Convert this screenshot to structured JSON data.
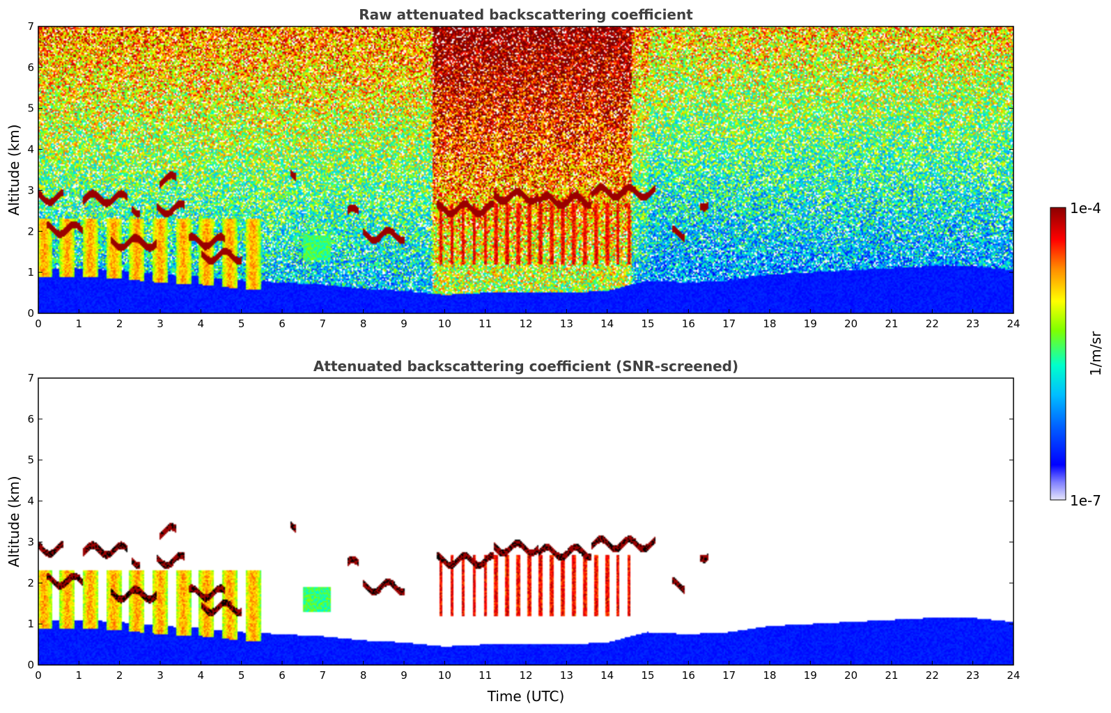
{
  "chart_data": [
    {
      "type": "heatmap",
      "title": "Raw attenuated backscattering coefficient",
      "xlabel": "",
      "ylabel": "Altitude (km)",
      "xlim": [
        0,
        24
      ],
      "ylim": [
        0,
        7
      ],
      "xticks": [
        "0",
        "1",
        "2",
        "3",
        "4",
        "5",
        "6",
        "7",
        "8",
        "9",
        "10",
        "11",
        "12",
        "13",
        "14",
        "15",
        "16",
        "17",
        "18",
        "19",
        "20",
        "21",
        "22",
        "23",
        "24"
      ],
      "yticks": [
        "0",
        "1",
        "2",
        "3",
        "4",
        "5",
        "6",
        "7"
      ],
      "screened": false
    },
    {
      "type": "heatmap",
      "title": "Attenuated backscattering coefficient (SNR-screened)",
      "xlabel": "Time (UTC)",
      "ylabel": "Altitude (km)",
      "xlim": [
        0,
        24
      ],
      "ylim": [
        0,
        7
      ],
      "xticks": [
        "0",
        "1",
        "2",
        "3",
        "4",
        "5",
        "6",
        "7",
        "8",
        "9",
        "10",
        "11",
        "12",
        "13",
        "14",
        "15",
        "16",
        "17",
        "18",
        "19",
        "20",
        "21",
        "22",
        "23",
        "24"
      ],
      "yticks": [
        "0",
        "1",
        "2",
        "3",
        "4",
        "5",
        "6",
        "7"
      ],
      "screened": true
    }
  ],
  "colorbar": {
    "label": "1/m/sr",
    "max_label": "1e-4",
    "min_label": "1e-7",
    "scale": "log",
    "colormap": "jet",
    "colors": [
      "#e6e6fa",
      "#0000ff",
      "#00bfff",
      "#00ffcc",
      "#7fff00",
      "#ffff00",
      "#ff8c00",
      "#ff0000",
      "#8b0000"
    ]
  },
  "features": {
    "cloud_layers": [
      {
        "t0": 0.0,
        "t1": 0.6,
        "alt": 2.83
      },
      {
        "t0": 0.2,
        "t1": 1.1,
        "alt": 2.05
      },
      {
        "t0": 1.1,
        "t1": 2.2,
        "alt": 2.8
      },
      {
        "t0": 2.3,
        "t1": 2.5,
        "alt": 2.55
      },
      {
        "t0": 2.9,
        "t1": 3.6,
        "alt": 2.55
      },
      {
        "t0": 3.0,
        "t1": 3.4,
        "alt": 3.25
      },
      {
        "t0": 1.8,
        "t1": 2.9,
        "alt": 1.72
      },
      {
        "t0": 3.7,
        "t1": 4.6,
        "alt": 1.75
      },
      {
        "t0": 4.0,
        "t1": 5.0,
        "alt": 1.4
      },
      {
        "t0": 6.2,
        "t1": 6.35,
        "alt": 3.45
      },
      {
        "t0": 7.6,
        "t1": 7.9,
        "alt": 2.45
      },
      {
        "t0": 8.0,
        "t1": 9.0,
        "alt": 1.9
      },
      {
        "t0": 9.8,
        "t1": 11.2,
        "alt": 2.55
      },
      {
        "t0": 11.2,
        "t1": 12.3,
        "alt": 2.85
      },
      {
        "t0": 12.3,
        "t1": 13.6,
        "alt": 2.75
      },
      {
        "t0": 13.6,
        "t1": 14.6,
        "alt": 2.95
      },
      {
        "t0": 14.6,
        "t1": 15.2,
        "alt": 2.95
      },
      {
        "t0": 15.6,
        "t1": 15.9,
        "alt": 1.95
      },
      {
        "t0": 16.3,
        "t1": 16.5,
        "alt": 2.7
      }
    ],
    "aerosol_top_km": [
      [
        0,
        1.1
      ],
      [
        1,
        1.1
      ],
      [
        2,
        1.05
      ],
      [
        3,
        0.95
      ],
      [
        4,
        0.9
      ],
      [
        5,
        0.8
      ],
      [
        6,
        0.75
      ],
      [
        7,
        0.7
      ],
      [
        8,
        0.6
      ],
      [
        9,
        0.55
      ],
      [
        10,
        0.45
      ],
      [
        11,
        0.5
      ],
      [
        12,
        0.5
      ],
      [
        13,
        0.5
      ],
      [
        14,
        0.55
      ],
      [
        15,
        0.8
      ],
      [
        16,
        0.75
      ],
      [
        17,
        0.8
      ],
      [
        18,
        0.95
      ],
      [
        19,
        1.0
      ],
      [
        20,
        1.05
      ],
      [
        21,
        1.1
      ],
      [
        22,
        1.15
      ],
      [
        23,
        1.15
      ],
      [
        24,
        1.05
      ]
    ]
  }
}
